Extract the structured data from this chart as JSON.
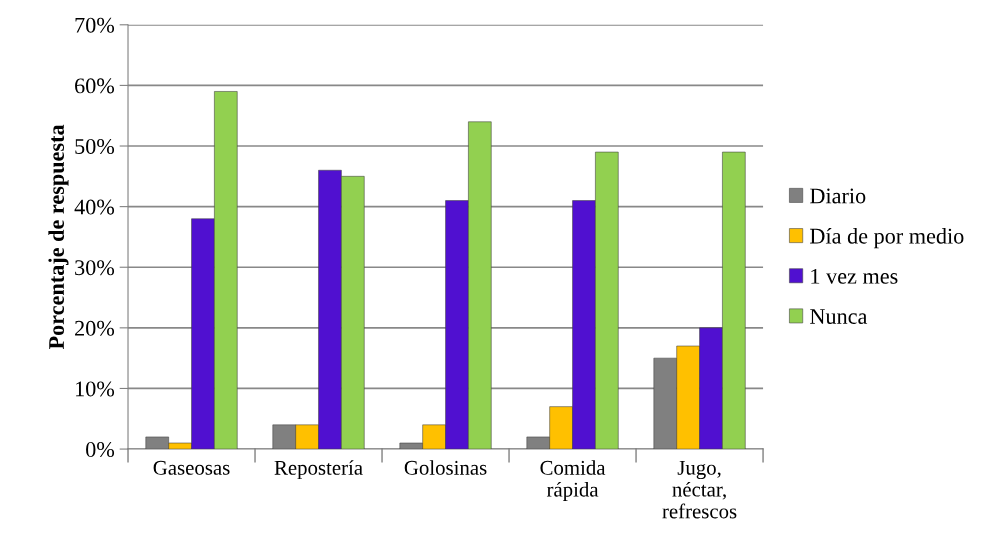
{
  "chart_data": {
    "type": "bar",
    "ylabel": "Porcentaje de respuesta",
    "categories": [
      "Gaseosas",
      "Repostería",
      "Golosinas",
      "Comida\nrápida",
      "Jugo,\nnéctar,\nrefrescos"
    ],
    "series": [
      {
        "name": "Diario",
        "color": "#808080",
        "values": [
          2,
          4,
          1,
          2,
          15
        ]
      },
      {
        "name": "Día de por medio",
        "color": "#ffc000",
        "values": [
          1,
          4,
          4,
          7,
          17
        ]
      },
      {
        "name": "1 vez mes",
        "color": "#5010d0",
        "values": [
          38,
          46,
          41,
          41,
          20
        ]
      },
      {
        "name": "Nunca",
        "color": "#92d050",
        "values": [
          59,
          45,
          54,
          49,
          49
        ]
      }
    ],
    "ylim": [
      0,
      70
    ],
    "yticks": [
      {
        "value": 0,
        "label": "0%"
      },
      {
        "value": 10,
        "label": "10%"
      },
      {
        "value": 20,
        "label": "20%"
      },
      {
        "value": 30,
        "label": "30%"
      },
      {
        "value": 40,
        "label": "40%"
      },
      {
        "value": 50,
        "label": "50%"
      },
      {
        "value": 60,
        "label": "60%"
      },
      {
        "value": 70,
        "label": "70%"
      }
    ],
    "grid": "y",
    "legend": "right"
  }
}
